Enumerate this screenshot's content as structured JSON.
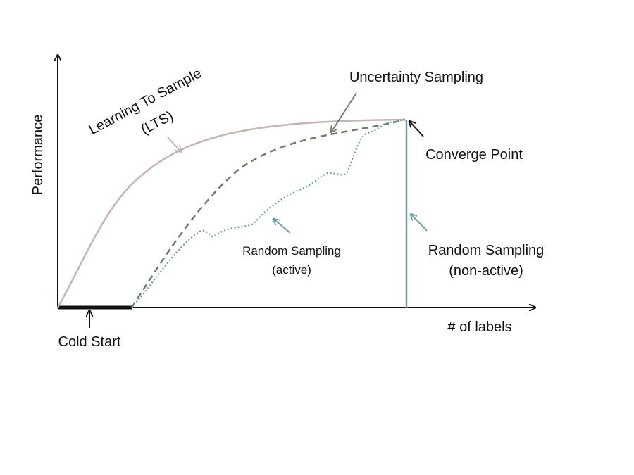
{
  "axes": {
    "y_label": "Performance",
    "x_label": "# of labels"
  },
  "curves": {
    "lts": {
      "label_line1": "Learning To Sample",
      "label_line2": "(LTS)",
      "color": "#c6b4b2"
    },
    "uncertainty": {
      "label": "Uncertainty Sampling",
      "color": "#707a6a"
    },
    "random_active": {
      "label_line1": "Random Sampling",
      "label_line2": "(active)",
      "color": "#6f9ea8"
    },
    "random_nonactive": {
      "label_line1": "Random Sampling",
      "label_line2": "(non-active)",
      "color": "#6f9ea8"
    }
  },
  "annotations": {
    "converge_point": "Converge Point",
    "cold_start": "Cold Start"
  },
  "colors": {
    "axis": "#111111",
    "cold_start_bar": "#111111"
  }
}
